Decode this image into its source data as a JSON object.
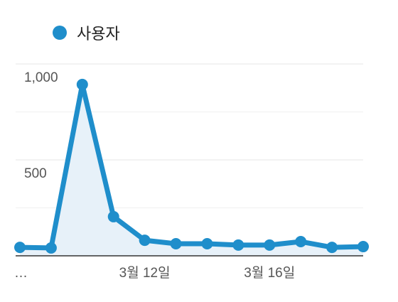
{
  "chart_data": {
    "type": "line",
    "categories": [
      "…",
      null,
      null,
      null,
      "3월 12일",
      null,
      null,
      null,
      "3월 16일",
      null,
      null,
      null
    ],
    "series": [
      {
        "name": "사용자",
        "color": "#1f8ecb",
        "values": [
          44,
          41,
          893,
          204,
          81,
          63,
          63,
          56,
          56,
          74,
          44,
          48
        ]
      }
    ],
    "ylim": [
      0,
      1000
    ],
    "yticks": [
      500,
      {
        "value": 1000,
        "label": "1,000"
      }
    ],
    "minor_yticks": [
      250,
      750
    ],
    "grid": true,
    "area": true,
    "markers": true,
    "legend": "top-left"
  }
}
